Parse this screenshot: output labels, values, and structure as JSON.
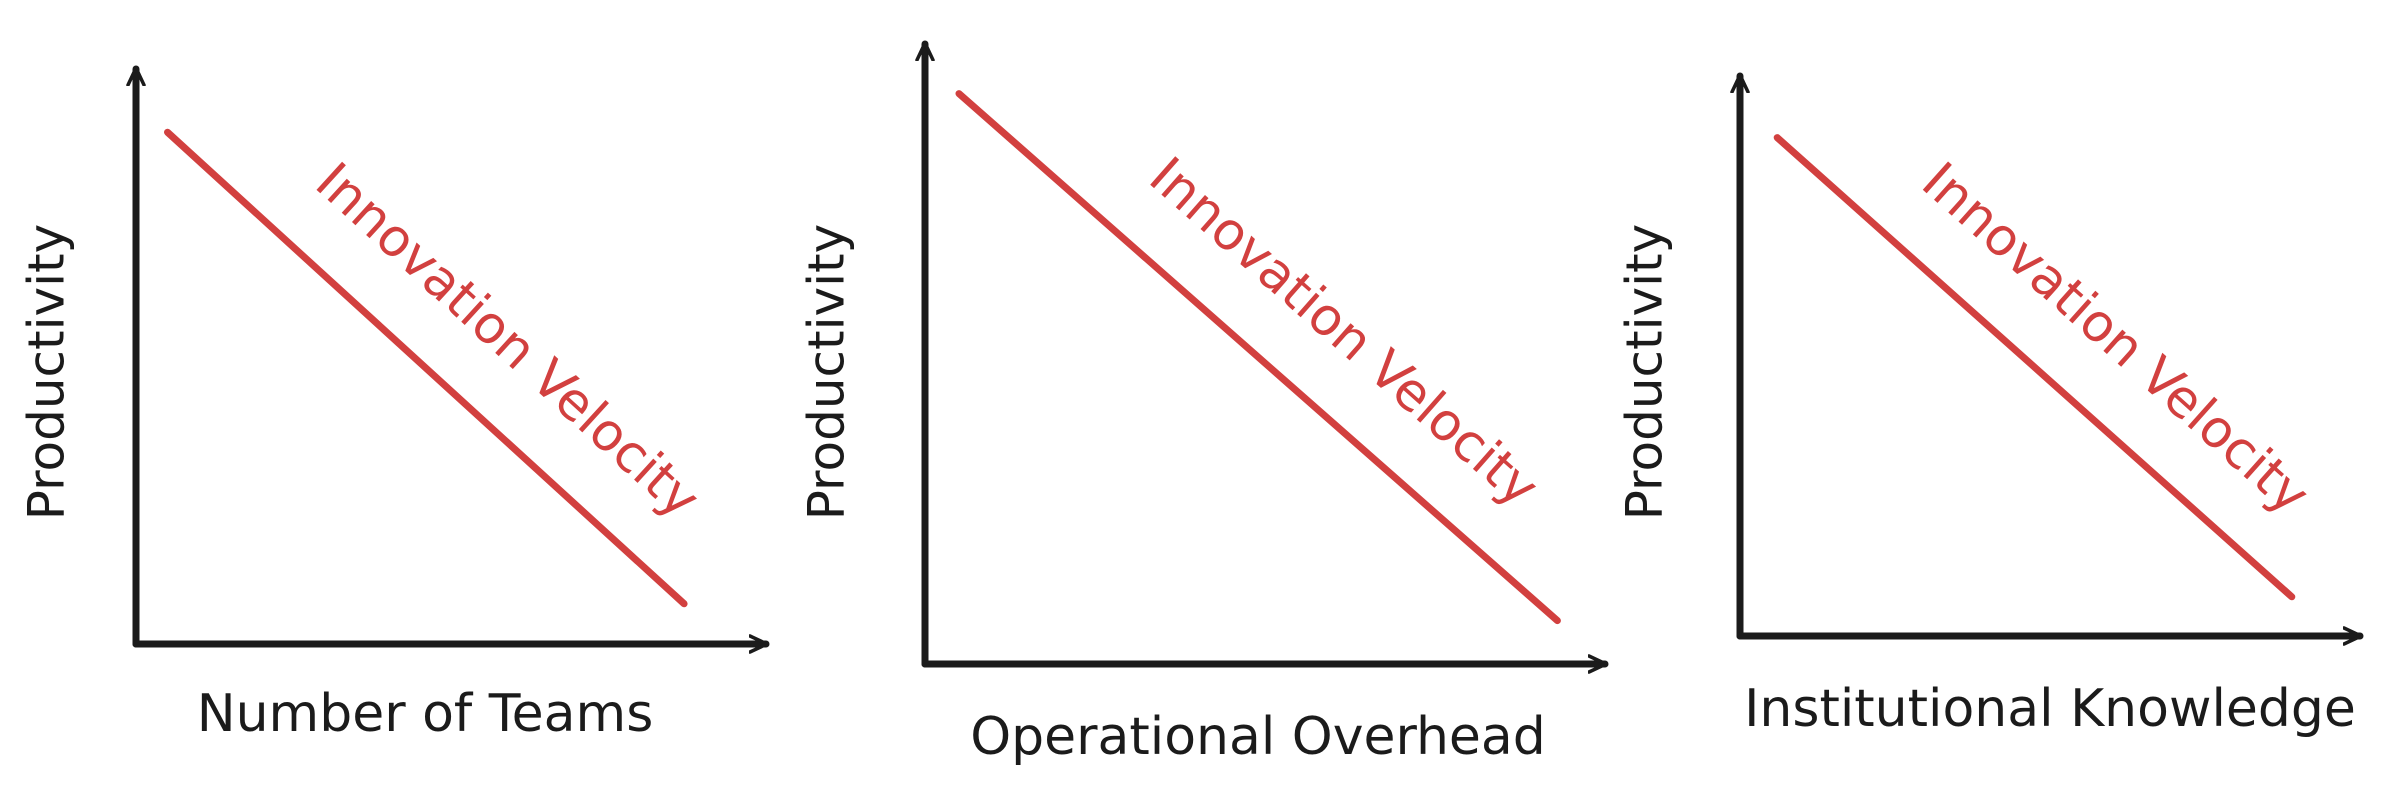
{
  "colors": {
    "axis": "#1b1b1b",
    "series": "#d2403f",
    "background": "#ffffff"
  },
  "chart_data": [
    {
      "type": "line",
      "xlabel": "Number of Teams",
      "ylabel": "Productivity",
      "grid": false,
      "series": [
        {
          "name": "Innovation Velocity",
          "x": [
            0.05,
            0.87
          ],
          "y": [
            0.89,
            0.07
          ]
        }
      ]
    },
    {
      "type": "line",
      "xlabel": "Operational Overhead",
      "ylabel": "Productivity",
      "grid": false,
      "series": [
        {
          "name": "Innovation Velocity",
          "x": [
            0.05,
            0.93
          ],
          "y": [
            0.92,
            0.07
          ]
        }
      ]
    },
    {
      "type": "line",
      "xlabel": "Institutional Knowledge",
      "ylabel": "Productivity",
      "grid": false,
      "series": [
        {
          "name": "Innovation Velocity",
          "x": [
            0.06,
            0.89
          ],
          "y": [
            0.89,
            0.07
          ]
        }
      ]
    }
  ]
}
